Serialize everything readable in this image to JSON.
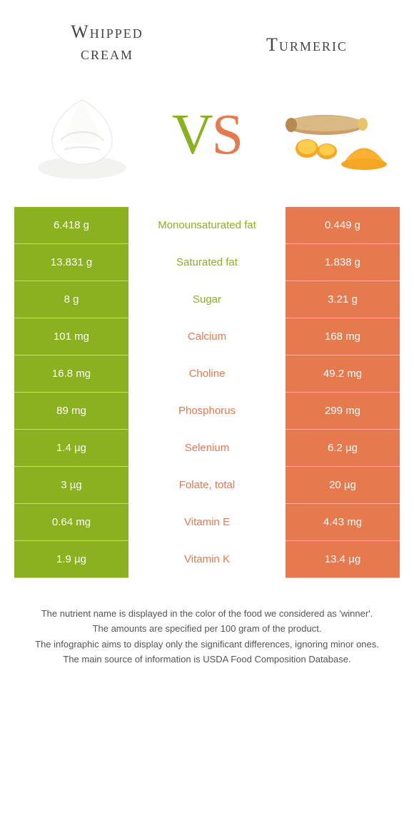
{
  "header": {
    "left_title_line1": "Whipped",
    "left_title_line2": "cream",
    "right_title": "Turmeric"
  },
  "vs": {
    "v": "V",
    "s": "S"
  },
  "colors": {
    "left": "#8ab11f",
    "right": "#e67a4f",
    "background": "#ffffff",
    "text": "#333333",
    "footnote": "#555555"
  },
  "rows": [
    {
      "left": "6.418 g",
      "nutrient": "Monounsaturated fat",
      "winner": "left",
      "right": "0.449 g"
    },
    {
      "left": "13.831 g",
      "nutrient": "Saturated fat",
      "winner": "left",
      "right": "1.838 g"
    },
    {
      "left": "8 g",
      "nutrient": "Sugar",
      "winner": "left",
      "right": "3.21 g"
    },
    {
      "left": "101 mg",
      "nutrient": "Calcium",
      "winner": "right",
      "right": "168 mg"
    },
    {
      "left": "16.8 mg",
      "nutrient": "Choline",
      "winner": "right",
      "right": "49.2 mg"
    },
    {
      "left": "89 mg",
      "nutrient": "Phosphorus",
      "winner": "right",
      "right": "299 mg"
    },
    {
      "left": "1.4 µg",
      "nutrient": "Selenium",
      "winner": "right",
      "right": "6.2 µg"
    },
    {
      "left": "3 µg",
      "nutrient": "Folate, total",
      "winner": "right",
      "right": "20 µg"
    },
    {
      "left": "0.64 mg",
      "nutrient": "Vitamin E",
      "winner": "right",
      "right": "4.43 mg"
    },
    {
      "left": "1.9 µg",
      "nutrient": "Vitamin K",
      "winner": "right",
      "right": "13.4 µg"
    }
  ],
  "footnotes": [
    "The nutrient name is displayed in the color of the food we considered as 'winner'.",
    "The amounts are specified per 100 gram of the product.",
    "The infographic aims to display only the significant differences, ignoring minor ones.",
    "The main source of information is USDA Food Composition Database."
  ]
}
